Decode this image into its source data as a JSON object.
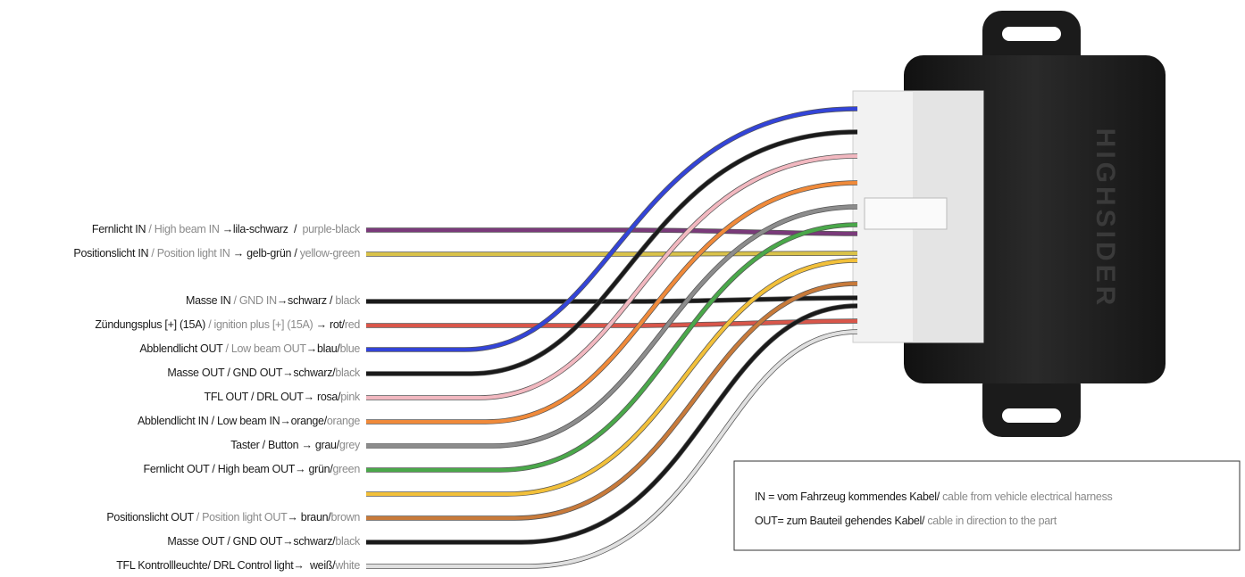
{
  "wires": [
    {
      "segments": [
        {
          "text": "Fernlicht IN",
          "tone": "dark"
        },
        {
          "text": " / High beam IN ",
          "tone": "light"
        },
        {
          "text": "→lila-schwarz  /  ",
          "tone": "dark"
        },
        {
          "text": "purple-black",
          "tone": "light"
        }
      ]
    },
    {
      "segments": [
        {
          "text": "Positionslicht IN",
          "tone": "dark"
        },
        {
          "text": " / Position light IN ",
          "tone": "light"
        },
        {
          "text": "→ gelb-grün / ",
          "tone": "dark"
        },
        {
          "text": "yellow-green",
          "tone": "light"
        }
      ]
    },
    {
      "segments": [
        {
          "text": "Masse IN",
          "tone": "dark"
        },
        {
          "text": " / GND IN",
          "tone": "light"
        },
        {
          "text": "→schwarz / ",
          "tone": "dark"
        },
        {
          "text": "black",
          "tone": "light"
        }
      ]
    },
    {
      "segments": [
        {
          "text": "Zündungsplus [+] (15A)",
          "tone": "dark"
        },
        {
          "text": " / ignition plus [+] (15A) ",
          "tone": "light"
        },
        {
          "text": "→ rot/",
          "tone": "dark"
        },
        {
          "text": "red",
          "tone": "light"
        }
      ]
    },
    {
      "segments": [
        {
          "text": "Abblendlicht OUT",
          "tone": "dark"
        },
        {
          "text": " / Low beam OUT",
          "tone": "light"
        },
        {
          "text": "→blau/",
          "tone": "dark"
        },
        {
          "text": "blue",
          "tone": "light"
        }
      ]
    },
    {
      "segments": [
        {
          "text": "Masse OUT / GND OUT→schwarz/",
          "tone": "dark"
        },
        {
          "text": "black",
          "tone": "light"
        }
      ]
    },
    {
      "segments": [
        {
          "text": "TFL OUT / DRL OUT→ rosa/",
          "tone": "dark"
        },
        {
          "text": "pink",
          "tone": "light"
        }
      ]
    },
    {
      "segments": [
        {
          "text": "Abblendlicht IN / Low beam IN→orange/",
          "tone": "dark"
        },
        {
          "text": "orange",
          "tone": "light"
        }
      ]
    },
    {
      "segments": [
        {
          "text": "Taster / Button → grau/",
          "tone": "dark"
        },
        {
          "text": "grey",
          "tone": "light"
        }
      ]
    },
    {
      "segments": [
        {
          "text": "Fernlicht OUT / High beam OUT→ grün/",
          "tone": "dark"
        },
        {
          "text": "green",
          "tone": "light"
        }
      ]
    },
    {
      "segments": []
    },
    {
      "segments": [
        {
          "text": "Positionslicht OUT",
          "tone": "dark"
        },
        {
          "text": " / Position light OUT",
          "tone": "light"
        },
        {
          "text": "→ braun/",
          "tone": "dark"
        },
        {
          "text": "brown",
          "tone": "light"
        }
      ]
    },
    {
      "segments": [
        {
          "text": "Masse OUT / GND OUT→schwarz/",
          "tone": "dark"
        },
        {
          "text": "black",
          "tone": "light"
        }
      ]
    },
    {
      "segments": [
        {
          "text": "TFL Kontrollleuchte/ DRL Control light→  weiß/",
          "tone": "dark"
        },
        {
          "text": "white",
          "tone": "light"
        }
      ]
    }
  ],
  "note": {
    "lines": [
      {
        "segments": [
          {
            "text": "IN = vom Fahrzeug kommendes Kabel/",
            "tone": "dark"
          },
          {
            "text": " cable from vehicle electrical harness",
            "tone": "light"
          }
        ]
      },
      {
        "segments": [
          {
            "text": "OUT= zum Bauteil gehendes Kabel/",
            "tone": "dark"
          },
          {
            "text": " cable in direction to the part",
            "tone": "light"
          }
        ]
      }
    ]
  },
  "device": {
    "brand": "HIGHSIDER"
  }
}
